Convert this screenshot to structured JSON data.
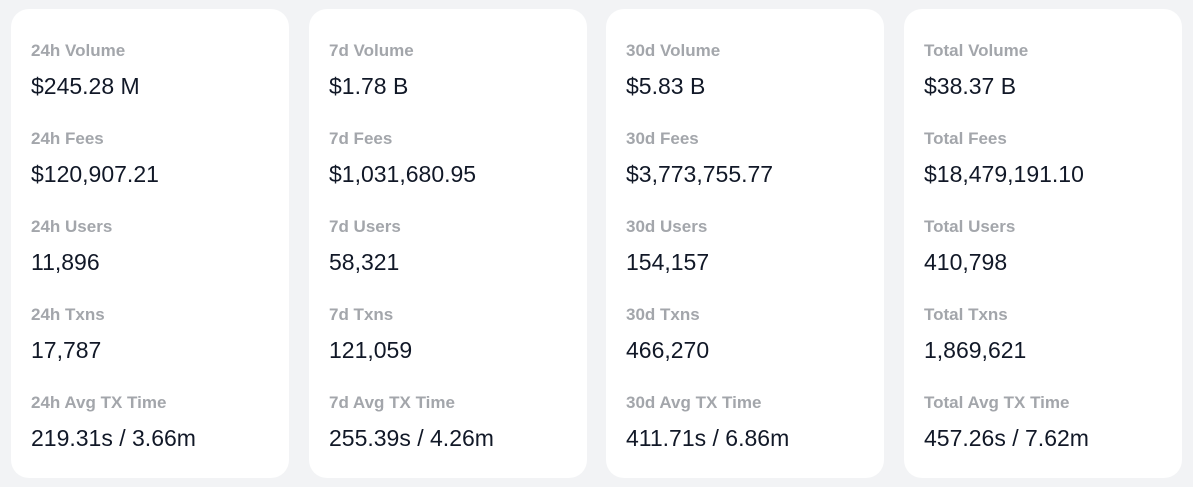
{
  "cards": [
    {
      "stats": [
        {
          "label": "24h Volume",
          "value": "$245.28 M"
        },
        {
          "label": "24h Fees",
          "value": "$120,907.21"
        },
        {
          "label": "24h Users",
          "value": "11,896"
        },
        {
          "label": "24h Txns",
          "value": "17,787"
        },
        {
          "label": "24h Avg TX Time",
          "value": "219.31s / 3.66m"
        }
      ]
    },
    {
      "stats": [
        {
          "label": "7d Volume",
          "value": "$1.78 B"
        },
        {
          "label": "7d Fees",
          "value": "$1,031,680.95"
        },
        {
          "label": "7d Users",
          "value": "58,321"
        },
        {
          "label": "7d Txns",
          "value": "121,059"
        },
        {
          "label": "7d Avg TX Time",
          "value": "255.39s / 4.26m"
        }
      ]
    },
    {
      "stats": [
        {
          "label": "30d Volume",
          "value": "$5.83 B"
        },
        {
          "label": "30d Fees",
          "value": "$3,773,755.77"
        },
        {
          "label": "30d Users",
          "value": "154,157"
        },
        {
          "label": "30d Txns",
          "value": "466,270"
        },
        {
          "label": "30d Avg TX Time",
          "value": "411.71s / 6.86m"
        }
      ]
    },
    {
      "stats": [
        {
          "label": "Total Volume",
          "value": "$38.37 B"
        },
        {
          "label": "Total Fees",
          "value": "$18,479,191.10"
        },
        {
          "label": "Total Users",
          "value": "410,798"
        },
        {
          "label": "Total Txns",
          "value": "1,869,621"
        },
        {
          "label": "Total Avg TX Time",
          "value": "457.26s / 7.62m"
        }
      ]
    }
  ]
}
